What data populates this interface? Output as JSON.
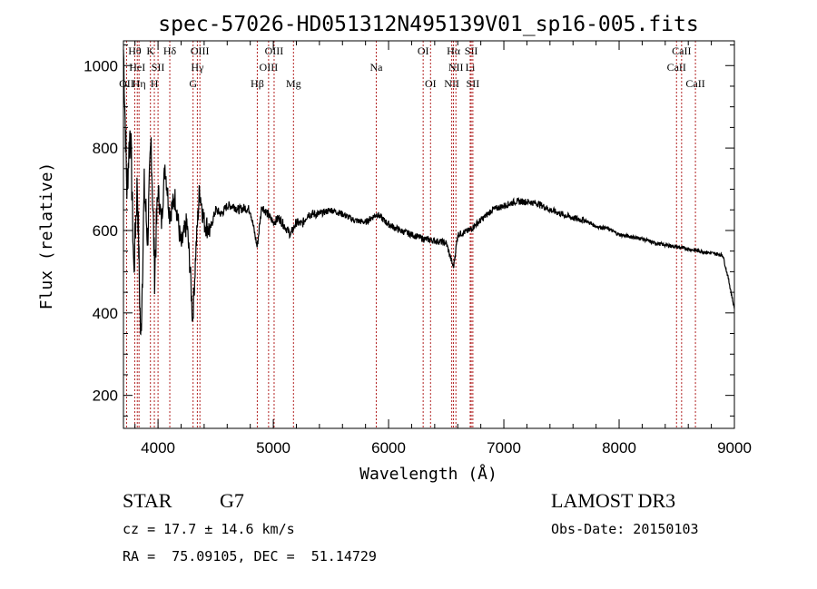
{
  "chart_data": {
    "type": "line",
    "title": "spec-57026-HD051312N495139V01_sp16-005.fits",
    "xlabel": "Wavelength (Å)",
    "ylabel": "Flux (relative)",
    "xlim": [
      3700,
      9000
    ],
    "ylim": [
      120,
      1060
    ],
    "xticks": [
      4000,
      5000,
      6000,
      7000,
      8000,
      9000
    ],
    "yticks": [
      200,
      400,
      600,
      800,
      1000
    ],
    "grid": false,
    "series": [
      {
        "name": "flux",
        "x": [
          3700,
          3730,
          3760,
          3790,
          3820,
          3850,
          3880,
          3910,
          3940,
          3970,
          4000,
          4030,
          4060,
          4100,
          4150,
          4200,
          4250,
          4280,
          4300,
          4330,
          4360,
          4400,
          4450,
          4500,
          4550,
          4600,
          4650,
          4700,
          4750,
          4800,
          4860,
          4900,
          4950,
          5000,
          5050,
          5100,
          5150,
          5200,
          5250,
          5300,
          5400,
          5500,
          5600,
          5700,
          5800,
          5900,
          6000,
          6100,
          6200,
          6300,
          6400,
          6500,
          6563,
          6600,
          6700,
          6800,
          6900,
          7000,
          7100,
          7200,
          7300,
          7400,
          7500,
          7600,
          7700,
          7800,
          7900,
          8000,
          8100,
          8200,
          8300,
          8400,
          8500,
          8600,
          8700,
          8800,
          8900,
          8950,
          9000
        ],
        "y": [
          1040,
          700,
          860,
          500,
          720,
          320,
          700,
          580,
          820,
          500,
          700,
          620,
          760,
          640,
          680,
          560,
          620,
          500,
          380,
          560,
          700,
          620,
          600,
          650,
          640,
          660,
          660,
          650,
          655,
          650,
          560,
          660,
          640,
          620,
          630,
          610,
          590,
          620,
          615,
          640,
          640,
          650,
          640,
          625,
          620,
          640,
          615,
          600,
          590,
          580,
          575,
          570,
          510,
          590,
          600,
          625,
          650,
          660,
          670,
          670,
          665,
          650,
          640,
          630,
          625,
          610,
          605,
          590,
          585,
          580,
          570,
          565,
          560,
          555,
          550,
          545,
          540,
          480,
          410
        ]
      }
    ],
    "spectral_lines": [
      {
        "label": "OII",
        "wavelength": 3727,
        "row": 2
      },
      {
        "label": "Hθ",
        "wavelength": 3798,
        "row": 0
      },
      {
        "label": "HeI",
        "wavelength": 3820,
        "row": 1
      },
      {
        "label": "Hη",
        "wavelength": 3835,
        "row": 2
      },
      {
        "label": "K",
        "wavelength": 3934,
        "row": 0
      },
      {
        "label": "H",
        "wavelength": 3968,
        "row": 2
      },
      {
        "label": "SII",
        "wavelength": 4000,
        "row": 1
      },
      {
        "label": "Hδ",
        "wavelength": 4102,
        "row": 0
      },
      {
        "label": "G",
        "wavelength": 4304,
        "row": 2
      },
      {
        "label": "Hγ",
        "wavelength": 4341,
        "row": 1
      },
      {
        "label": "OIII",
        "wavelength": 4363,
        "row": 0
      },
      {
        "label": "Hβ",
        "wavelength": 4861,
        "row": 2
      },
      {
        "label": "OIII",
        "wavelength": 4959,
        "row": 1
      },
      {
        "label": "OIII",
        "wavelength": 5007,
        "row": 0
      },
      {
        "label": "Mg",
        "wavelength": 5175,
        "row": 2
      },
      {
        "label": "Na",
        "wavelength": 5893,
        "row": 1
      },
      {
        "label": "OI",
        "wavelength": 6300,
        "row": 0
      },
      {
        "label": "OI",
        "wavelength": 6364,
        "row": 2
      },
      {
        "label": "NII",
        "wavelength": 6548,
        "row": 2
      },
      {
        "label": "Hα",
        "wavelength": 6563,
        "row": 0
      },
      {
        "label": "NII",
        "wavelength": 6584,
        "row": 1
      },
      {
        "label": "SII",
        "wavelength": 6717,
        "row": 0
      },
      {
        "label": "Li",
        "wavelength": 6708,
        "row": 1
      },
      {
        "label": "SII",
        "wavelength": 6731,
        "row": 2
      },
      {
        "label": "CaII",
        "wavelength": 8498,
        "row": 1
      },
      {
        "label": "CaII",
        "wavelength": 8542,
        "row": 0
      },
      {
        "label": "CaII",
        "wavelength": 8662,
        "row": 2
      }
    ],
    "line_color": "#b22222"
  },
  "info": {
    "object_class": "STAR",
    "subclass": "G7",
    "survey": "LAMOST DR3",
    "redshift": "cz = 17.7 ± 14.6 km/s",
    "obs_date": "Obs-Date: 20150103",
    "coords": "RA =  75.09105, DEC =  51.14729"
  }
}
